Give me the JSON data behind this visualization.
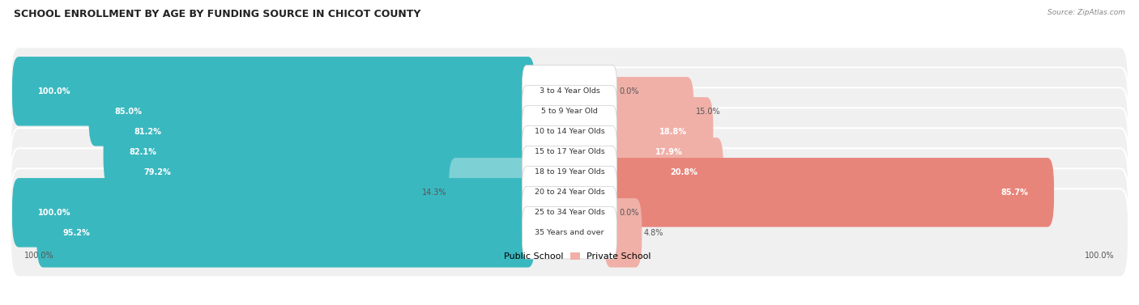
{
  "title": "SCHOOL ENROLLMENT BY AGE BY FUNDING SOURCE IN CHICOT COUNTY",
  "source": "Source: ZipAtlas.com",
  "categories": [
    "3 to 4 Year Olds",
    "5 to 9 Year Old",
    "10 to 14 Year Olds",
    "15 to 17 Year Olds",
    "18 to 19 Year Olds",
    "20 to 24 Year Olds",
    "25 to 34 Year Olds",
    "35 Years and over"
  ],
  "public_values": [
    100.0,
    85.0,
    81.2,
    82.1,
    79.2,
    14.3,
    100.0,
    95.2
  ],
  "private_values": [
    0.0,
    15.0,
    18.8,
    17.9,
    20.8,
    85.7,
    0.0,
    4.8
  ],
  "public_color": "#3ab8bf",
  "public_color_light": "#7dd0d4",
  "private_color": "#e8857a",
  "private_color_light": "#f0b0a8",
  "row_bg": "#f0f0f0",
  "row_border": "#ffffff",
  "title_fontsize": 9,
  "bar_label_fontsize": 7,
  "cat_label_fontsize": 6.8,
  "footer_fontsize": 7
}
